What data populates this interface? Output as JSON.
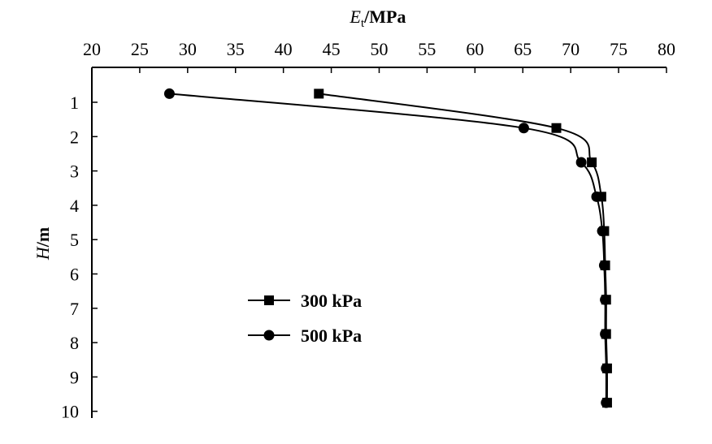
{
  "chart_data": {
    "type": "line",
    "title": "",
    "xlabel": {
      "symbol": "E",
      "subscript": "t",
      "unit": "/MPa"
    },
    "ylabel": {
      "symbol": "H",
      "unit": "/m"
    },
    "xlim": [
      20,
      80
    ],
    "ylim": [
      10,
      0
    ],
    "x_ticks": [
      "20",
      "25",
      "30",
      "35",
      "40",
      "45",
      "50",
      "55",
      "60",
      "65",
      "70",
      "75",
      "80"
    ],
    "y_ticks": [
      "1",
      "2",
      "3",
      "4",
      "5",
      "6",
      "7",
      "8",
      "9",
      "10"
    ],
    "x_axis_position": "top",
    "y_axis_inverted": true,
    "grid": false,
    "legend_position": "lower-left",
    "series": [
      {
        "name": "300 kPa",
        "marker": "square",
        "points": [
          [
            43.7,
            0.75
          ],
          [
            68.5,
            1.75
          ],
          [
            72.2,
            2.75
          ],
          [
            73.2,
            3.75
          ],
          [
            73.5,
            4.75
          ],
          [
            73.6,
            5.75
          ],
          [
            73.7,
            6.75
          ],
          [
            73.7,
            7.75
          ],
          [
            73.8,
            8.75
          ],
          [
            73.8,
            9.75
          ]
        ]
      },
      {
        "name": "500 kPa",
        "marker": "circle",
        "points": [
          [
            28.1,
            0.75
          ],
          [
            65.1,
            1.75
          ],
          [
            71.1,
            2.75
          ],
          [
            72.7,
            3.75
          ],
          [
            73.3,
            4.75
          ],
          [
            73.5,
            5.75
          ],
          [
            73.6,
            6.75
          ],
          [
            73.6,
            7.75
          ],
          [
            73.7,
            8.75
          ],
          [
            73.7,
            9.75
          ]
        ]
      }
    ]
  }
}
